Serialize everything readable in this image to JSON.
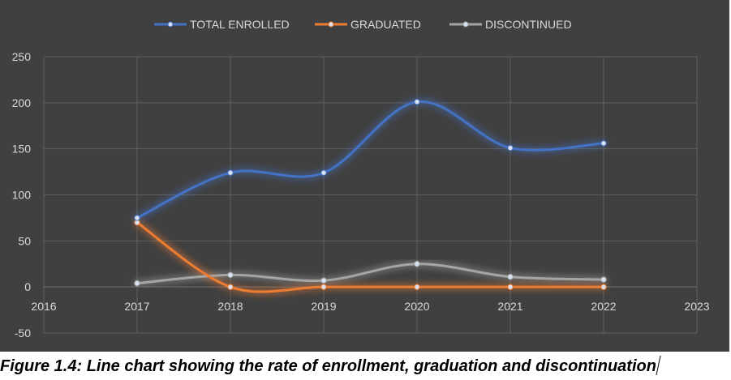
{
  "caption": "Figure 1.4: Line chart showing the rate of enrollment, graduation and discontinuation",
  "chart_data": {
    "type": "line",
    "title": "",
    "xlabel": "",
    "ylabel": "",
    "xlim": [
      2016,
      2023
    ],
    "ylim": [
      -50,
      250
    ],
    "x_ticks": [
      2016,
      2017,
      2018,
      2019,
      2020,
      2021,
      2022,
      2023
    ],
    "y_ticks": [
      -50,
      0,
      50,
      100,
      150,
      200,
      250
    ],
    "grid": true,
    "smooth": true,
    "legend_position": "top",
    "background": "#404040",
    "series": [
      {
        "name": "TOTAL ENROLLED",
        "color": "#4472C4",
        "x": [
          2017,
          2018,
          2019,
          2020,
          2021,
          2022
        ],
        "y": [
          75,
          124,
          124,
          201,
          151,
          156
        ]
      },
      {
        "name": "GRADUATED",
        "color": "#ED7D31",
        "x": [
          2017,
          2018,
          2019,
          2020,
          2021,
          2022
        ],
        "y": [
          70,
          0,
          0,
          0,
          0,
          0
        ]
      },
      {
        "name": "DISCONTINUED",
        "color": "#A5A5A5",
        "x": [
          2017,
          2018,
          2019,
          2020,
          2021,
          2022
        ],
        "y": [
          4,
          13,
          7,
          25,
          11,
          8
        ]
      }
    ]
  }
}
